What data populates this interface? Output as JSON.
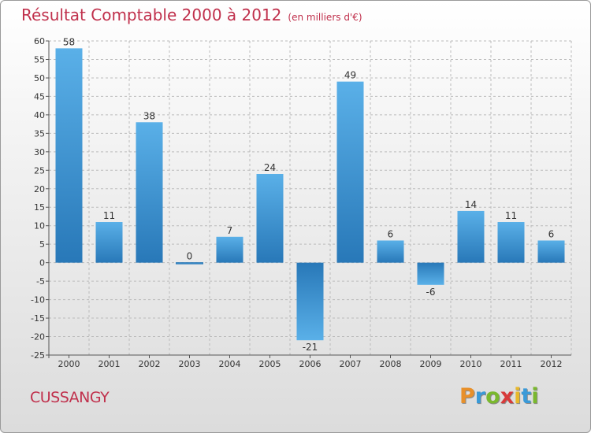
{
  "header": {
    "title": "Résultat Comptable 2000 à 2012",
    "subtitle": "(en milliers d'€)"
  },
  "footer": {
    "town": "CUSSANGY",
    "logo_letters": [
      "P",
      "r",
      "o",
      "x",
      "i",
      "t",
      "i"
    ],
    "logo_colors": [
      "#e8902a",
      "#3a9ad8",
      "#7ab82e",
      "#d83a3a",
      "#e8b82a",
      "#3a9ad8",
      "#7ab82e"
    ]
  },
  "colors": {
    "bar_light": "#5ab0e8",
    "bar_dark": "#2878b8",
    "grid": "#bbbbbb",
    "axis": "#555555",
    "title": "#c0304c"
  },
  "chart_data": {
    "type": "bar",
    "title": "Résultat Comptable 2000 à 2012",
    "subtitle": "(en milliers d'€)",
    "xlabel": "",
    "ylabel": "",
    "categories": [
      "2000",
      "2001",
      "2002",
      "2003",
      "2004",
      "2005",
      "2006",
      "2007",
      "2008",
      "2009",
      "2010",
      "2011",
      "2012"
    ],
    "values": [
      58,
      11,
      38,
      0,
      7,
      24,
      -21,
      49,
      6,
      -6,
      14,
      11,
      6
    ],
    "ylim": [
      -25,
      60
    ],
    "yticks": [
      60,
      55,
      50,
      45,
      40,
      35,
      30,
      25,
      20,
      15,
      10,
      5,
      0,
      -5,
      -10,
      -15,
      -20,
      -25
    ],
    "grid": true,
    "data_labels": true
  }
}
